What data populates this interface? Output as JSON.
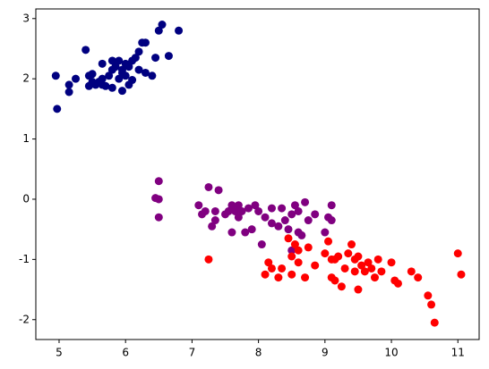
{
  "chart_data": {
    "type": "scatter",
    "xlim": [
      4.65,
      11.32
    ],
    "ylim": [
      -2.33,
      3.16
    ],
    "xticks": [
      5,
      6,
      7,
      8,
      9,
      10,
      11
    ],
    "yticks": [
      -2,
      -1,
      0,
      1,
      2,
      3
    ],
    "series": [
      {
        "color": "#000080",
        "x": [
          4.95,
          4.97,
          5.15,
          5.15,
          5.25,
          5.4,
          5.45,
          5.45,
          5.5,
          5.5,
          5.55,
          5.6,
          5.65,
          5.65,
          5.7,
          5.75,
          5.8,
          5.8,
          5.8,
          5.85,
          5.9,
          5.9,
          5.95,
          5.95,
          6.0,
          6.0,
          6.05,
          6.05,
          6.1,
          6.15,
          6.2,
          6.2,
          6.25,
          6.3,
          6.3,
          6.4,
          6.45,
          6.5,
          6.55,
          6.65,
          6.8,
          5.95,
          6.1,
          5.65
        ],
        "values": [
          2.05,
          1.5,
          1.9,
          1.78,
          2.0,
          2.48,
          1.88,
          2.05,
          1.95,
          2.08,
          1.9,
          1.95,
          2.0,
          2.25,
          1.88,
          2.05,
          1.85,
          2.15,
          2.3,
          2.2,
          2.3,
          2.0,
          1.8,
          2.15,
          2.25,
          2.05,
          1.9,
          2.2,
          2.3,
          2.35,
          2.45,
          2.15,
          2.6,
          2.6,
          2.1,
          2.05,
          2.35,
          2.8,
          2.9,
          2.38,
          2.8,
          2.1,
          1.98,
          1.9
        ]
      },
      {
        "color": "#800080",
        "x": [
          6.45,
          6.5,
          6.5,
          6.5,
          7.1,
          7.15,
          7.2,
          7.25,
          7.3,
          7.35,
          7.35,
          7.4,
          7.5,
          7.55,
          7.6,
          7.6,
          7.65,
          7.7,
          7.7,
          7.75,
          7.8,
          7.85,
          7.9,
          7.95,
          8.0,
          8.05,
          8.1,
          8.2,
          8.2,
          8.3,
          8.35,
          8.4,
          8.45,
          8.5,
          8.55,
          8.6,
          8.6,
          8.7,
          8.75,
          8.85,
          9.0,
          9.05,
          9.1,
          9.1,
          8.5,
          8.65
        ],
        "values": [
          0.02,
          0.0,
          -0.3,
          0.3,
          -0.1,
          -0.25,
          -0.2,
          0.2,
          -0.45,
          -0.35,
          -0.2,
          0.15,
          -0.25,
          -0.2,
          -0.1,
          -0.55,
          -0.2,
          -0.3,
          -0.1,
          -0.2,
          -0.55,
          -0.15,
          -0.5,
          -0.1,
          -0.2,
          -0.75,
          -0.3,
          -0.15,
          -0.4,
          -0.45,
          -0.15,
          -0.35,
          -0.5,
          -0.25,
          -0.1,
          -0.2,
          -0.55,
          -0.05,
          -0.35,
          -0.25,
          -0.55,
          -0.3,
          -0.1,
          -0.35,
          -0.85,
          -0.6
        ]
      },
      {
        "color": "#ff0000",
        "x": [
          7.25,
          8.1,
          8.15,
          8.2,
          8.35,
          8.45,
          8.5,
          8.5,
          8.55,
          8.6,
          8.6,
          8.7,
          8.75,
          8.85,
          9.0,
          9.05,
          9.1,
          9.1,
          9.15,
          9.15,
          9.2,
          9.25,
          9.3,
          9.35,
          9.4,
          9.45,
          9.45,
          9.5,
          9.55,
          9.6,
          9.65,
          9.7,
          9.75,
          9.8,
          9.85,
          10.0,
          10.05,
          10.1,
          10.3,
          10.4,
          10.55,
          10.6,
          10.65,
          11.0,
          11.05,
          8.3,
          9.5
        ],
        "values": [
          -1.0,
          -1.25,
          -1.05,
          -1.15,
          -1.15,
          -0.65,
          -0.95,
          -1.25,
          -0.75,
          -0.85,
          -1.05,
          -1.3,
          -0.8,
          -1.1,
          -0.9,
          -0.7,
          -1.0,
          -1.3,
          -1.35,
          -1.0,
          -0.95,
          -1.45,
          -1.15,
          -0.9,
          -0.75,
          -1.0,
          -1.2,
          -1.5,
          -1.1,
          -1.2,
          -1.05,
          -1.15,
          -1.3,
          -1.0,
          -1.2,
          -1.05,
          -1.35,
          -1.4,
          -1.2,
          -1.3,
          -1.6,
          -1.75,
          -2.05,
          -0.9,
          -1.25,
          -1.3,
          -0.95
        ]
      }
    ]
  }
}
